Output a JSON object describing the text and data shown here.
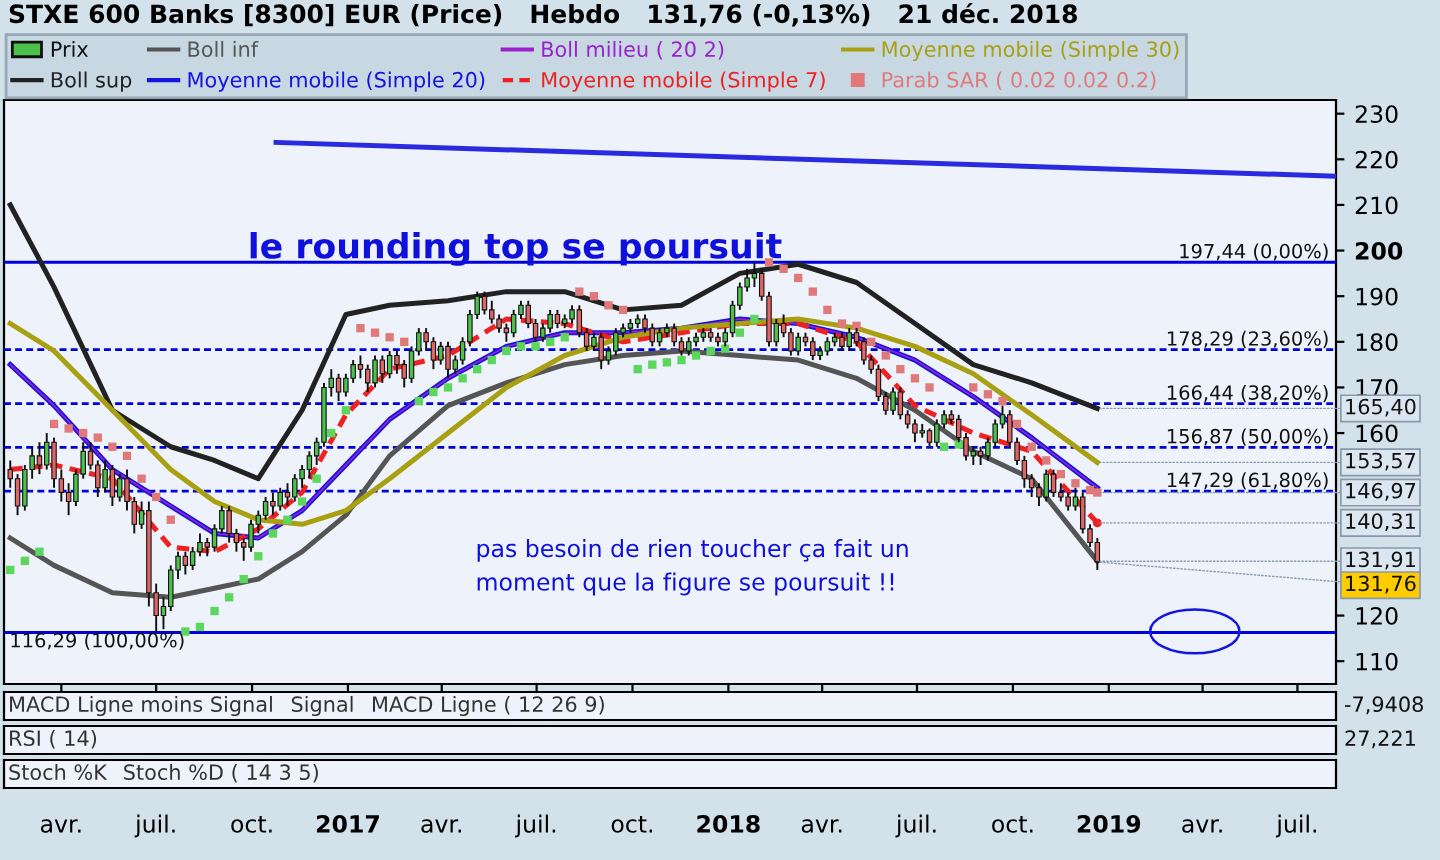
{
  "chart_data": [
    {
      "type": "candlestick",
      "title": "STXE 600 Banks [8300] EUR (Price)   Hebdo   131,76 (-0,13%)   21 déc. 2018",
      "xlim": [
        "2016-02-06",
        "2019-08-07"
      ],
      "ylim": [
        105,
        233
      ],
      "xticks": [
        {
          "value": "2016-04-01",
          "label": "avr."
        },
        {
          "value": "2016-07-01",
          "label": "juil."
        },
        {
          "value": "2016-10-01",
          "label": "oct."
        },
        {
          "value": "2017-01-01",
          "label": "2017"
        },
        {
          "value": "2017-04-01",
          "label": "avr."
        },
        {
          "value": "2017-07-01",
          "label": "juil."
        },
        {
          "value": "2017-10-01",
          "label": "oct."
        },
        {
          "value": "2018-01-01",
          "label": "2018"
        },
        {
          "value": "2018-04-01",
          "label": "avr."
        },
        {
          "value": "2018-07-01",
          "label": "juil."
        },
        {
          "value": "2018-10-01",
          "label": "oct."
        },
        {
          "value": "2019-01-01",
          "label": "2019"
        },
        {
          "value": "2019-04-01",
          "label": "avr."
        },
        {
          "value": "2019-07-01",
          "label": "juil."
        }
      ],
      "yticks": [
        110,
        120,
        160,
        170,
        180,
        190,
        200,
        210,
        220,
        230
      ],
      "legend": "top left",
      "grid": false,
      "series": [
        {
          "name": "Prix",
          "x": [
            "2016-02-12",
            "2016-02-19",
            "2016-02-26",
            "2016-03-04",
            "2016-03-11",
            "2016-03-18",
            "2016-03-25",
            "2016-04-01",
            "2016-04-08",
            "2016-04-15",
            "2016-04-22",
            "2016-04-29",
            "2016-05-06",
            "2016-05-13",
            "2016-05-20",
            "2016-05-27",
            "2016-06-03",
            "2016-06-10",
            "2016-06-17",
            "2016-06-24",
            "2016-07-01",
            "2016-07-08",
            "2016-07-15",
            "2016-07-22",
            "2016-07-29",
            "2016-08-05",
            "2016-08-12",
            "2016-08-19",
            "2016-08-26",
            "2016-09-02",
            "2016-09-09",
            "2016-09-16",
            "2016-09-23",
            "2016-09-30",
            "2016-10-07",
            "2016-10-14",
            "2016-10-21",
            "2016-10-28",
            "2016-11-04",
            "2016-11-11",
            "2016-11-18",
            "2016-11-25",
            "2016-12-02",
            "2016-12-09",
            "2016-12-16",
            "2016-12-23",
            "2016-12-30",
            "2017-01-06",
            "2017-01-13",
            "2017-01-20",
            "2017-01-27",
            "2017-02-03",
            "2017-02-10",
            "2017-02-17",
            "2017-02-24",
            "2017-03-03",
            "2017-03-10",
            "2017-03-17",
            "2017-03-24",
            "2017-03-31",
            "2017-04-07",
            "2017-04-14",
            "2017-04-21",
            "2017-04-28",
            "2017-05-05",
            "2017-05-12",
            "2017-05-19",
            "2017-05-26",
            "2017-06-02",
            "2017-06-09",
            "2017-06-16",
            "2017-06-23",
            "2017-06-30",
            "2017-07-07",
            "2017-07-14",
            "2017-07-21",
            "2017-07-28",
            "2017-08-04",
            "2017-08-11",
            "2017-08-18",
            "2017-08-25",
            "2017-09-01",
            "2017-09-08",
            "2017-09-15",
            "2017-09-22",
            "2017-09-29",
            "2017-10-06",
            "2017-10-13",
            "2017-10-20",
            "2017-10-27",
            "2017-11-03",
            "2017-11-10",
            "2017-11-17",
            "2017-11-24",
            "2017-12-01",
            "2017-12-08",
            "2017-12-15",
            "2017-12-22",
            "2017-12-29",
            "2018-01-05",
            "2018-01-12",
            "2018-01-19",
            "2018-01-26",
            "2018-02-02",
            "2018-02-09",
            "2018-02-16",
            "2018-02-23",
            "2018-03-02",
            "2018-03-09",
            "2018-03-16",
            "2018-03-23",
            "2018-03-30",
            "2018-04-06",
            "2018-04-13",
            "2018-04-20",
            "2018-04-27",
            "2018-05-04",
            "2018-05-11",
            "2018-05-18",
            "2018-05-25",
            "2018-06-01",
            "2018-06-08",
            "2018-06-15",
            "2018-06-22",
            "2018-06-29",
            "2018-07-06",
            "2018-07-13",
            "2018-07-20",
            "2018-07-27",
            "2018-08-03",
            "2018-08-10",
            "2018-08-17",
            "2018-08-24",
            "2018-08-31",
            "2018-09-07",
            "2018-09-14",
            "2018-09-21",
            "2018-09-28",
            "2018-10-05",
            "2018-10-12",
            "2018-10-19",
            "2018-10-26",
            "2018-11-02",
            "2018-11-09",
            "2018-11-16",
            "2018-11-23",
            "2018-11-30",
            "2018-12-07",
            "2018-12-14",
            "2018-12-21"
          ],
          "ohlc": [
            [
              152,
              154,
              148,
              150
            ],
            [
              150,
              151,
              142,
              144
            ],
            [
              144,
              153,
              143,
              152
            ],
            [
              152,
              157,
              150,
              155
            ],
            [
              155,
              158,
              151,
              153
            ],
            [
              153,
              160,
              152,
              158
            ],
            [
              158,
              159,
              148,
              150
            ],
            [
              150,
              152,
              145,
              147
            ],
            [
              147,
              149,
              142,
              145
            ],
            [
              145,
              152,
              144,
              151
            ],
            [
              151,
              158,
              150,
              156
            ],
            [
              156,
              158,
              152,
              153
            ],
            [
              153,
              154,
              146,
              148
            ],
            [
              148,
              154,
              147,
              152
            ],
            [
              152,
              153,
              144,
              146
            ],
            [
              146,
              151,
              145,
              150
            ],
            [
              150,
              152,
              143,
              145
            ],
            [
              145,
              146,
              138,
              140
            ],
            [
              140,
              145,
              139,
              143
            ],
            [
              143,
              145,
              122,
              125
            ],
            [
              125,
              127,
              116.3,
              120
            ],
            [
              120,
              124,
              117,
              122
            ],
            [
              122,
              131,
              121,
              130
            ],
            [
              130,
              134,
              128,
              133
            ],
            [
              133,
              134,
              129,
              131
            ],
            [
              131,
              135,
              130,
              134
            ],
            [
              134,
              138,
              133,
              136
            ],
            [
              136,
              137,
              133,
              135
            ],
            [
              135,
              140,
              134,
              139
            ],
            [
              139,
              144,
              138,
              143
            ],
            [
              143,
              144,
              136,
              138
            ],
            [
              138,
              139,
              134,
              136
            ],
            [
              136,
              137,
              132,
              135
            ],
            [
              135,
              141,
              134,
              140
            ],
            [
              140,
              143,
              138,
              142
            ],
            [
              142,
              146,
              141,
              145
            ],
            [
              145,
              147,
              142,
              144
            ],
            [
              144,
              148,
              143,
              147
            ],
            [
              147,
              149,
              144,
              146
            ],
            [
              146,
              151,
              145,
              150
            ],
            [
              150,
              153,
              148,
              152
            ],
            [
              152,
              156,
              150,
              155
            ],
            [
              155,
              159,
              153,
              158
            ],
            [
              158,
              171,
              157,
              170
            ],
            [
              170,
              174,
              168,
              172
            ],
            [
              172,
              173,
              167,
              169
            ],
            [
              169,
              173,
              168,
              172
            ],
            [
              172,
              176,
              171,
              175
            ],
            [
              175,
              177,
              172,
              174
            ],
            [
              174,
              175,
              169,
              171
            ],
            [
              171,
              177,
              170,
              176
            ],
            [
              176,
              177,
              171,
              173
            ],
            [
              173,
              178,
              172,
              177
            ],
            [
              177,
              178,
              173,
              175
            ],
            [
              175,
              176,
              170,
              172
            ],
            [
              172,
              179,
              171,
              178
            ],
            [
              178,
              183,
              177,
              182
            ],
            [
              182,
              183,
              178,
              180
            ],
            [
              180,
              181,
              174,
              176
            ],
            [
              176,
              180,
              175,
              179
            ],
            [
              179,
              180,
              172,
              174
            ],
            [
              174,
              177,
              173,
              176
            ],
            [
              176,
              181,
              175,
              180
            ],
            [
              180,
              187,
              179,
              186
            ],
            [
              186,
              191,
              185,
              190
            ],
            [
              190,
              191,
              186,
              187
            ],
            [
              187,
              189,
              184,
              185
            ],
            [
              185,
              186,
              182,
              183
            ],
            [
              183,
              184,
              180,
              182
            ],
            [
              182,
              187,
              181,
              186
            ],
            [
              186,
              189,
              185,
              188
            ],
            [
              188,
              189,
              183,
              184
            ],
            [
              184,
              185,
              180,
              181
            ],
            [
              181,
              184,
              180,
              183
            ],
            [
              183,
              187,
              182,
              186
            ],
            [
              186,
              187,
              183,
              184
            ],
            [
              184,
              186,
              183,
              185
            ],
            [
              185,
              188,
              184,
              187
            ],
            [
              187,
              188,
              181,
              182
            ],
            [
              182,
              183,
              178,
              179
            ],
            [
              179,
              182,
              178,
              181
            ],
            [
              181,
              182,
              174,
              176
            ],
            [
              176,
              179,
              175,
              178
            ],
            [
              178,
              183,
              177,
              182
            ],
            [
              182,
              184,
              181,
              183
            ],
            [
              183,
              185,
              182,
              184
            ],
            [
              184,
              186,
              183,
              185
            ],
            [
              185,
              186,
              182,
              183
            ],
            [
              183,
              184,
              179,
              180
            ],
            [
              180,
              183,
              179,
              182
            ],
            [
              182,
              184,
              181,
              183
            ],
            [
              183,
              184,
              179,
              180
            ],
            [
              180,
              181,
              177,
              178
            ],
            [
              178,
              181,
              177,
              180
            ],
            [
              180,
              182,
              179,
              181
            ],
            [
              181,
              183,
              180,
              182
            ],
            [
              182,
              183,
              180,
              181
            ],
            [
              181,
              182,
              179,
              180
            ],
            [
              180,
              183,
              179,
              182
            ],
            [
              182,
              189,
              181,
              188
            ],
            [
              188,
              193,
              187,
              192
            ],
            [
              192,
              196,
              191,
              194
            ],
            [
              194,
              197.4,
              192,
              195
            ],
            [
              195,
              196,
              189,
              190
            ],
            [
              190,
              191,
              179,
              180
            ],
            [
              180,
              185,
              179,
              184
            ],
            [
              184,
              186,
              181,
              182
            ],
            [
              182,
              183,
              177,
              178
            ],
            [
              178,
              182,
              177,
              181
            ],
            [
              181,
              182,
              179,
              180
            ],
            [
              180,
              181,
              176,
              177
            ],
            [
              177,
              179,
              176,
              178
            ],
            [
              178,
              181,
              177,
              180
            ],
            [
              180,
              182,
              179,
              181
            ],
            [
              181,
              182,
              178,
              179
            ],
            [
              179,
              183,
              178,
              182
            ],
            [
              182,
              183,
              179,
              180
            ],
            [
              180,
              181,
              175,
              176
            ],
            [
              176,
              177,
              173,
              174
            ],
            [
              174,
              175,
              167,
              168
            ],
            [
              168,
              169,
              164,
              165
            ],
            [
              165,
              170,
              164,
              169
            ],
            [
              169,
              170,
              163,
              164
            ],
            [
              164,
              165,
              161,
              162
            ],
            [
              162,
              163,
              158,
              160
            ],
            [
              160,
              162,
              159,
              160.5
            ],
            [
              160.5,
              161,
              157,
              158
            ],
            [
              158,
              163,
              157,
              162
            ],
            [
              162,
              165,
              161,
              164
            ],
            [
              164,
              165,
              162,
              163
            ],
            [
              163,
              164,
              158,
              159
            ],
            [
              159,
              160,
              154,
              155
            ],
            [
              155,
              157,
              153,
              156
            ],
            [
              156,
              157,
              153,
              155
            ],
            [
              155,
              159,
              154,
              158
            ],
            [
              158,
              163,
              157,
              162
            ],
            [
              162,
              166,
              161,
              164
            ],
            [
              164,
              165,
              157,
              158
            ],
            [
              158,
              159,
              153,
              154
            ],
            [
              154,
              155,
              148,
              150
            ],
            [
              150,
              151,
              146,
              148
            ],
            [
              148,
              149,
              144,
              146
            ],
            [
              146,
              152,
              145,
              151
            ],
            [
              151,
              152,
              146,
              147
            ],
            [
              147,
              149,
              145,
              146
            ],
            [
              146,
              147,
              143,
              144
            ],
            [
              144,
              148,
              143,
              146
            ],
            [
              146,
              147,
              138,
              139
            ],
            [
              139,
              140,
              135,
              136
            ],
            [
              136,
              137,
              130,
              131.76
            ]
          ]
        },
        {
          "name": "Boll sup",
          "type": "line",
          "color": "#222222",
          "x": [
            "2016-02-12",
            "2016-03-25",
            "2016-05-20",
            "2016-07-15",
            "2016-08-26",
            "2016-10-07",
            "2016-11-18",
            "2016-12-30",
            "2017-02-10",
            "2017-04-07",
            "2017-06-02",
            "2017-07-28",
            "2017-09-22",
            "2017-11-17",
            "2018-01-12",
            "2018-03-09",
            "2018-05-04",
            "2018-06-29",
            "2018-08-24",
            "2018-10-19",
            "2018-12-21"
          ],
          "values": [
            210,
            192,
            165,
            157,
            154,
            150,
            165,
            186,
            188,
            189,
            191,
            191,
            187,
            188,
            195,
            197,
            193,
            184,
            175,
            171,
            165.4
          ]
        },
        {
          "name": "Boll inf",
          "type": "line",
          "color": "#555555",
          "x": [
            "2016-02-12",
            "2016-03-25",
            "2016-05-20",
            "2016-07-15",
            "2016-08-26",
            "2016-10-07",
            "2016-11-18",
            "2016-12-30",
            "2017-02-10",
            "2017-04-07",
            "2017-06-02",
            "2017-07-28",
            "2017-09-22",
            "2017-11-17",
            "2018-01-12",
            "2018-03-09",
            "2018-05-04",
            "2018-06-29",
            "2018-08-24",
            "2018-10-19",
            "2018-12-21"
          ],
          "values": [
            137,
            131,
            125,
            124,
            126,
            128,
            134,
            142,
            155,
            166,
            171,
            175,
            177,
            178,
            177,
            176,
            172,
            165,
            156,
            150,
            131.91
          ]
        },
        {
          "name": "Moyenne mobile (Simple 20)",
          "type": "line",
          "color": "#1515e0",
          "x": [
            "2016-02-12",
            "2016-03-25",
            "2016-05-20",
            "2016-07-15",
            "2016-08-26",
            "2016-10-07",
            "2016-11-18",
            "2016-12-30",
            "2017-02-10",
            "2017-04-07",
            "2017-06-02",
            "2017-07-28",
            "2017-09-22",
            "2017-11-17",
            "2018-01-12",
            "2018-03-09",
            "2018-05-04",
            "2018-06-29",
            "2018-08-24",
            "2018-10-19",
            "2018-12-21"
          ],
          "values": [
            175,
            166,
            152,
            144,
            138,
            137,
            143,
            153,
            163,
            172,
            179,
            182,
            182,
            183,
            185,
            184,
            181,
            176,
            168,
            159,
            148
          ]
        },
        {
          "name": "Boll milieu ( 20 2)",
          "type": "line",
          "color": "#9a22cc",
          "x": [
            "2016-02-12",
            "2016-03-25",
            "2016-05-20",
            "2016-07-15",
            "2016-08-26",
            "2016-10-07",
            "2016-11-18",
            "2016-12-30",
            "2017-02-10",
            "2017-04-07",
            "2017-06-02",
            "2017-07-28",
            "2017-09-22",
            "2017-11-17",
            "2018-01-12",
            "2018-03-09",
            "2018-05-04",
            "2018-06-29",
            "2018-08-24",
            "2018-10-19",
            "2018-12-21"
          ],
          "values": [
            175,
            166,
            152,
            144,
            138,
            137,
            143,
            153,
            163,
            172,
            179,
            182,
            182,
            183,
            185,
            184,
            181,
            176,
            168,
            159,
            148
          ]
        },
        {
          "name": "Moyenne mobile (Simple 7)",
          "type": "line",
          "color": "#ee2222",
          "line_style": "dashed",
          "x": [
            "2016-02-12",
            "2016-03-25",
            "2016-05-20",
            "2016-07-15",
            "2016-08-26",
            "2016-10-07",
            "2016-11-18",
            "2016-12-30",
            "2017-02-10",
            "2017-04-07",
            "2017-06-02",
            "2017-07-28",
            "2017-09-22",
            "2017-11-17",
            "2018-01-12",
            "2018-03-09",
            "2018-05-04",
            "2018-06-29",
            "2018-08-24",
            "2018-10-19",
            "2018-12-21"
          ],
          "values": [
            152,
            153,
            150,
            135,
            134,
            139,
            147,
            164,
            174,
            177,
            185,
            184,
            180,
            182,
            184,
            184,
            180,
            166,
            160,
            156,
            140.31
          ]
        },
        {
          "name": "Moyenne mobile (Simple 30)",
          "type": "line",
          "color": "#a8a010",
          "x": [
            "2016-02-12",
            "2016-03-25",
            "2016-05-20",
            "2016-07-15",
            "2016-08-26",
            "2016-10-07",
            "2016-11-18",
            "2016-12-30",
            "2017-02-10",
            "2017-04-07",
            "2017-06-02",
            "2017-07-28",
            "2017-09-22",
            "2017-11-17",
            "2018-01-12",
            "2018-03-09",
            "2018-05-04",
            "2018-06-29",
            "2018-08-24",
            "2018-10-19",
            "2018-12-21"
          ],
          "values": [
            184,
            178,
            165,
            152,
            145,
            141,
            140,
            143,
            150,
            160,
            170,
            177,
            181,
            183,
            184,
            185,
            183,
            179,
            173,
            164,
            153.57
          ]
        },
        {
          "name": "Parab SAR ( 0.02 0.02 0.2)",
          "type": "scatter",
          "marker": "square",
          "color": "#e07a7a",
          "x": [
            "2016-02-12",
            "2016-02-26",
            "2016-03-11",
            "2016-03-25",
            "2016-04-08",
            "2016-04-22",
            "2016-05-06",
            "2016-05-20",
            "2016-06-03",
            "2016-06-17",
            "2016-07-01",
            "2016-07-15",
            "2016-07-29",
            "2016-08-12",
            "2016-08-26",
            "2016-09-09",
            "2016-09-23",
            "2016-10-07",
            "2016-10-21",
            "2016-11-04",
            "2016-11-18",
            "2016-12-02",
            "2016-12-16",
            "2016-12-30",
            "2017-01-13",
            "2017-01-27",
            "2017-02-10",
            "2017-02-24",
            "2017-03-10",
            "2017-03-24",
            "2017-04-07",
            "2017-04-21",
            "2017-05-05",
            "2017-05-19",
            "2017-06-02",
            "2017-06-16",
            "2017-06-30",
            "2017-07-14",
            "2017-07-28",
            "2017-08-11",
            "2017-08-25",
            "2017-09-08",
            "2017-09-22",
            "2017-10-06",
            "2017-10-20",
            "2017-11-03",
            "2017-11-17",
            "2017-12-01",
            "2017-12-15",
            "2017-12-29",
            "2018-01-12",
            "2018-01-26",
            "2018-02-09",
            "2018-02-23",
            "2018-03-09",
            "2018-03-23",
            "2018-04-06",
            "2018-04-20",
            "2018-05-04",
            "2018-05-18",
            "2018-06-01",
            "2018-06-15",
            "2018-06-29",
            "2018-07-13",
            "2018-07-27",
            "2018-08-10",
            "2018-08-24",
            "2018-09-07",
            "2018-09-21",
            "2018-10-05",
            "2018-10-19",
            "2018-11-02",
            "2018-11-16",
            "2018-11-30",
            "2018-12-14",
            "2018-12-21"
          ],
          "values": [
            130,
            132,
            134,
            162,
            161,
            160,
            159,
            157,
            155,
            150,
            146,
            141,
            116.5,
            117.5,
            121,
            124,
            128,
            133,
            138,
            141,
            145,
            150,
            160,
            165,
            183,
            182,
            181,
            180,
            167,
            169,
            170,
            172,
            174,
            176,
            178,
            179,
            179,
            180,
            181,
            191,
            190,
            188,
            187,
            174,
            175,
            175.5,
            176,
            177,
            178,
            178.5,
            182,
            185,
            197.4,
            196,
            194,
            191,
            187,
            184,
            183.5,
            180,
            177,
            174,
            172,
            170,
            157,
            157.5,
            170,
            168.5,
            167,
            162,
            157,
            154,
            151,
            149,
            147.5,
            146.97
          ],
          "colors": [
            "#5cd65c",
            "#5cd65c",
            "#5cd65c",
            "#e07a7a",
            "#e07a7a",
            "#e07a7a",
            "#e07a7a",
            "#e07a7a",
            "#e07a7a",
            "#e07a7a",
            "#e07a7a",
            "#e07a7a",
            "#5cd65c",
            "#5cd65c",
            "#5cd65c",
            "#5cd65c",
            "#5cd65c",
            "#5cd65c",
            "#5cd65c",
            "#5cd65c",
            "#5cd65c",
            "#5cd65c",
            "#5cd65c",
            "#5cd65c",
            "#e07a7a",
            "#e07a7a",
            "#e07a7a",
            "#e07a7a",
            "#5cd65c",
            "#5cd65c",
            "#5cd65c",
            "#5cd65c",
            "#5cd65c",
            "#5cd65c",
            "#5cd65c",
            "#5cd65c",
            "#5cd65c",
            "#5cd65c",
            "#5cd65c",
            "#e07a7a",
            "#e07a7a",
            "#e07a7a",
            "#e07a7a",
            "#5cd65c",
            "#5cd65c",
            "#5cd65c",
            "#5cd65c",
            "#5cd65c",
            "#5cd65c",
            "#5cd65c",
            "#5cd65c",
            "#5cd65c",
            "#e07a7a",
            "#e07a7a",
            "#e07a7a",
            "#e07a7a",
            "#e07a7a",
            "#e07a7a",
            "#e07a7a",
            "#e07a7a",
            "#e07a7a",
            "#e07a7a",
            "#e07a7a",
            "#e07a7a",
            "#5cd65c",
            "#5cd65c",
            "#e07a7a",
            "#e07a7a",
            "#e07a7a",
            "#e07a7a",
            "#e07a7a",
            "#e07a7a",
            "#e07a7a",
            "#e07a7a",
            "#e07a7a",
            "#e07a7a"
          ]
        },
        {
          "type": "line",
          "color": "#2a2ae0",
          "x": [
            "2016-10-24",
            "2019-08-07"
          ],
          "values": [
            223.7,
            216.3
          ]
        }
      ],
      "ref_lines": [
        {
          "axis": "y",
          "value": 197.44,
          "label": "197,44 (0,00%)",
          "color": "#0000dd",
          "line_style": "solid"
        },
        {
          "axis": "y",
          "value": 178.29,
          "label": "178,29 (23,60%)",
          "color": "#0000dd",
          "line_style": "dashed"
        },
        {
          "axis": "y",
          "value": 166.44,
          "label": "166,44 (38,20%)",
          "color": "#0000dd",
          "line_style": "dashed"
        },
        {
          "axis": "y",
          "value": 156.87,
          "label": "156,87 (50,00%)",
          "color": "#0000dd",
          "line_style": "dashed"
        },
        {
          "axis": "y",
          "value": 147.29,
          "label": "147,29 (61,80%)",
          "color": "#0000dd",
          "line_style": "dashed"
        },
        {
          "axis": "y",
          "value": 116.29,
          "label": "116,29 (100,00%)",
          "color": "#0000dd",
          "line_style": "solid"
        }
      ],
      "annotations": [
        "le rounding top se poursuit",
        "pas besoin de rien toucher ça fait un\nmoment que la figure se poursuit !!",
        {
          "text": "165,40",
          "x": "2018-12-21",
          "y": 165.4
        },
        {
          "text": "153,57",
          "x": "2018-12-21",
          "y": 153.57
        },
        {
          "text": "146,97",
          "x": "2018-12-21",
          "y": 146.97
        },
        {
          "text": "140,31",
          "x": "2018-12-21",
          "y": 140.31
        },
        {
          "text": "131,91",
          "x": "2018-12-21",
          "y": 131.91
        },
        {
          "text": "131,76",
          "x": "2018-12-21",
          "y": 131.76
        }
      ]
    },
    {
      "type": "other",
      "annotations": [
        "MACD Ligne moins Signal",
        "Signal",
        "MACD Ligne ( 12 26 9)"
      ],
      "ylabel": "-7,9408"
    },
    {
      "type": "other",
      "annotations": [
        "RSI ( 14)"
      ],
      "ylabel": "27,221"
    },
    {
      "type": "other",
      "annotations": [
        "Stoch %K",
        "Stoch %D ( 14 3 5)"
      ]
    }
  ]
}
